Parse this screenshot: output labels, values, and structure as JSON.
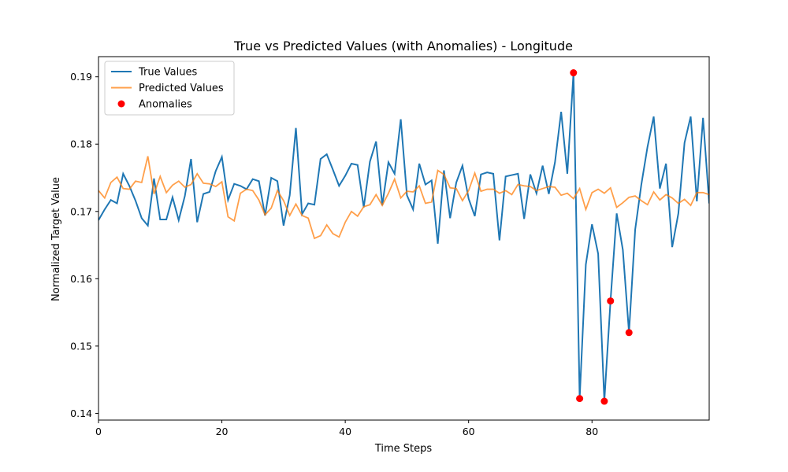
{
  "chart_data": {
    "type": "line",
    "title": "True vs Predicted Values (with Anomalies) - Longitude",
    "xlabel": "Time Steps",
    "ylabel": "Normalized Target Value",
    "xlim": [
      0,
      99
    ],
    "ylim": [
      0.139,
      0.193
    ],
    "xticks": [
      0,
      20,
      40,
      60,
      80
    ],
    "yticks": [
      0.14,
      0.15,
      0.16,
      0.17,
      0.18,
      0.19
    ],
    "xtick_labels": [
      "0",
      "20",
      "40",
      "60",
      "80"
    ],
    "ytick_labels": [
      "0.14",
      "0.15",
      "0.16",
      "0.17",
      "0.18",
      "0.19"
    ],
    "grid": false,
    "legend_position": "top-left",
    "series": [
      {
        "name": "True Values",
        "type": "line",
        "color": "#1f77b4",
        "x": [
          0,
          1,
          2,
          3,
          4,
          5,
          6,
          7,
          8,
          9,
          10,
          11,
          12,
          13,
          14,
          15,
          16,
          17,
          18,
          19,
          20,
          21,
          22,
          23,
          24,
          25,
          26,
          27,
          28,
          29,
          30,
          31,
          32,
          33,
          34,
          35,
          36,
          37,
          38,
          39,
          40,
          41,
          42,
          43,
          44,
          45,
          46,
          47,
          48,
          49,
          50,
          51,
          52,
          53,
          54,
          55,
          56,
          57,
          58,
          59,
          60,
          61,
          62,
          63,
          64,
          65,
          66,
          67,
          68,
          69,
          70,
          71,
          72,
          73,
          74,
          75,
          76,
          77,
          78,
          79,
          80,
          81,
          82,
          83,
          84,
          85,
          86,
          87,
          88,
          89,
          90,
          91,
          92,
          93,
          94,
          95,
          96,
          97,
          98,
          99
        ],
        "y": [
          0.1687,
          0.1703,
          0.1717,
          0.1712,
          0.1756,
          0.1738,
          0.1716,
          0.169,
          0.1679,
          0.1749,
          0.1688,
          0.1688,
          0.1721,
          0.1687,
          0.1723,
          0.1778,
          0.1684,
          0.1726,
          0.1729,
          0.176,
          0.1781,
          0.1717,
          0.1741,
          0.1738,
          0.1733,
          0.1748,
          0.1745,
          0.1694,
          0.175,
          0.1745,
          0.1679,
          0.1724,
          0.1824,
          0.1696,
          0.1712,
          0.171,
          0.1778,
          0.1785,
          0.1762,
          0.1738,
          0.1753,
          0.1771,
          0.1769,
          0.1706,
          0.1774,
          0.1804,
          0.1709,
          0.1773,
          0.1756,
          0.1837,
          0.1724,
          0.1703,
          0.1771,
          0.174,
          0.1746,
          0.1652,
          0.1761,
          0.169,
          0.1743,
          0.1768,
          0.1719,
          0.1693,
          0.1755,
          0.1758,
          0.1756,
          0.1657,
          0.1752,
          0.1754,
          0.1756,
          0.1689,
          0.1755,
          0.1727,
          0.1768,
          0.1726,
          0.1773,
          0.1848,
          0.1756,
          0.1906,
          0.1422,
          0.1621,
          0.1681,
          0.1637,
          0.1418,
          0.1567,
          0.1697,
          0.1643,
          0.152,
          0.1673,
          0.174,
          0.1796,
          0.1841,
          0.1734,
          0.1771,
          0.1647,
          0.1697,
          0.1802,
          0.1841,
          0.1715,
          0.1839,
          0.1712
        ]
      },
      {
        "name": "Predicted Values",
        "type": "line",
        "color": "#ff7f0e",
        "x": [
          0,
          1,
          2,
          3,
          4,
          5,
          6,
          7,
          8,
          9,
          10,
          11,
          12,
          13,
          14,
          15,
          16,
          17,
          18,
          19,
          20,
          21,
          22,
          23,
          24,
          25,
          26,
          27,
          28,
          29,
          30,
          31,
          32,
          33,
          34,
          35,
          36,
          37,
          38,
          39,
          40,
          41,
          42,
          43,
          44,
          45,
          46,
          47,
          48,
          49,
          50,
          51,
          52,
          53,
          54,
          55,
          56,
          57,
          58,
          59,
          60,
          61,
          62,
          63,
          64,
          65,
          66,
          67,
          68,
          69,
          70,
          71,
          72,
          73,
          74,
          75,
          76,
          77,
          78,
          79,
          80,
          81,
          82,
          83,
          84,
          85,
          86,
          87,
          88,
          89,
          90,
          91,
          92,
          93,
          94,
          95,
          96,
          97,
          98,
          99
        ],
        "y": [
          0.1731,
          0.172,
          0.1743,
          0.1751,
          0.1734,
          0.1733,
          0.1745,
          0.1743,
          0.1782,
          0.1726,
          0.1752,
          0.1728,
          0.1739,
          0.1745,
          0.1736,
          0.174,
          0.1756,
          0.1742,
          0.1741,
          0.1737,
          0.1744,
          0.1692,
          0.1686,
          0.1727,
          0.1733,
          0.1731,
          0.1717,
          0.1695,
          0.1705,
          0.1731,
          0.1716,
          0.1694,
          0.1711,
          0.1694,
          0.169,
          0.166,
          0.1664,
          0.168,
          0.1667,
          0.1662,
          0.1684,
          0.17,
          0.1693,
          0.1707,
          0.171,
          0.1725,
          0.1709,
          0.1727,
          0.1748,
          0.172,
          0.173,
          0.1729,
          0.1738,
          0.1712,
          0.1714,
          0.1761,
          0.1755,
          0.1735,
          0.1734,
          0.1716,
          0.1731,
          0.1757,
          0.173,
          0.1733,
          0.1733,
          0.1727,
          0.1731,
          0.1725,
          0.174,
          0.1738,
          0.1737,
          0.1731,
          0.1734,
          0.1737,
          0.1736,
          0.1724,
          0.1727,
          0.1719,
          0.1734,
          0.1703,
          0.1728,
          0.1733,
          0.1727,
          0.1735,
          0.1706,
          0.1713,
          0.1721,
          0.1723,
          0.1716,
          0.171,
          0.1729,
          0.1717,
          0.1725,
          0.172,
          0.1712,
          0.1718,
          0.1709,
          0.1728,
          0.1728,
          0.1725
        ]
      },
      {
        "name": "Anomalies",
        "type": "scatter",
        "color": "#ff0000",
        "x": [
          77,
          78,
          82,
          83,
          86
        ],
        "y": [
          0.1906,
          0.1422,
          0.1418,
          0.1567,
          0.152
        ]
      }
    ]
  }
}
